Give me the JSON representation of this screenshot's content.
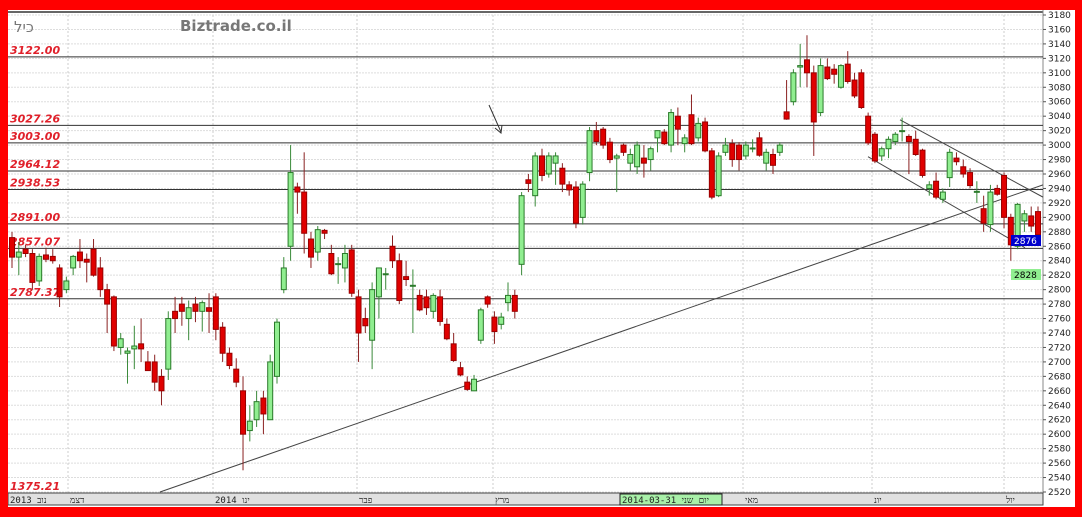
{
  "header": {
    "symbol": "כיל",
    "watermark": "Biztrade.co.il"
  },
  "levels": [
    {
      "label": "3122.00",
      "price": 3122.0
    },
    {
      "label": "3027.26",
      "price": 3027.26
    },
    {
      "label": "3003.00",
      "price": 3003.0
    },
    {
      "label": "2964.12",
      "price": 2964.12
    },
    {
      "label": "2938.53",
      "price": 2938.53
    },
    {
      "label": "2891.00",
      "price": 2891.0
    },
    {
      "label": "2857.07",
      "price": 2857.07
    },
    {
      "label": "2787.37",
      "price": 2787.37
    }
  ],
  "offscale_level": {
    "label": "1375.21"
  },
  "x_axis": {
    "labels": [
      "2013 נוב",
      "דצמ",
      "2014 ינו",
      "פבר",
      "מרץ",
      "מאי",
      "יונ",
      "יול"
    ],
    "cursor_label": "יום שני 2014-03-31"
  },
  "price_tags": {
    "last": "2876",
    "other": "2828"
  },
  "colors": {
    "up": "#90ee90",
    "down": "#e00000",
    "border": "#ff0000",
    "level_text": "#e0202a",
    "last_tag": "#0000cc",
    "other_tag": "#90ee90"
  },
  "chart_data": {
    "type": "candlestick",
    "ylim": [
      2520,
      3180
    ],
    "yticks": [
      3180,
      3160,
      3140,
      3120,
      3100,
      3080,
      3060,
      3040,
      3020,
      3000,
      2980,
      2960,
      2940,
      2920,
      2900,
      2880,
      2860,
      2840,
      2820,
      2800,
      2780,
      2760,
      2740,
      2720,
      2700,
      2680,
      2660,
      2640,
      2620,
      2600,
      2580,
      2560,
      2540,
      2520
    ],
    "grid": true,
    "ohlc": [
      [
        2872,
        2880,
        2830,
        2845
      ],
      [
        2845,
        2866,
        2820,
        2852
      ],
      [
        2856,
        2862,
        2845,
        2850
      ],
      [
        2850,
        2856,
        2800,
        2810
      ],
      [
        2812,
        2850,
        2805,
        2846
      ],
      [
        2848,
        2858,
        2838,
        2842
      ],
      [
        2846,
        2856,
        2836,
        2840
      ],
      [
        2830,
        2835,
        2776,
        2790
      ],
      [
        2800,
        2818,
        2795,
        2812
      ],
      [
        2830,
        2848,
        2820,
        2846
      ],
      [
        2852,
        2870,
        2830,
        2840
      ],
      [
        2842,
        2850,
        2810,
        2838
      ],
      [
        2856,
        2870,
        2818,
        2820
      ],
      [
        2830,
        2845,
        2790,
        2800
      ],
      [
        2800,
        2808,
        2740,
        2780
      ],
      [
        2790,
        2792,
        2715,
        2722
      ],
      [
        2720,
        2740,
        2710,
        2732
      ],
      [
        2712,
        2720,
        2670,
        2715
      ],
      [
        2718,
        2750,
        2690,
        2722
      ],
      [
        2725,
        2760,
        2700,
        2718
      ],
      [
        2700,
        2715,
        2690,
        2688
      ],
      [
        2700,
        2710,
        2660,
        2672
      ],
      [
        2680,
        2690,
        2640,
        2660
      ],
      [
        2690,
        2770,
        2675,
        2760
      ],
      [
        2770,
        2790,
        2740,
        2760
      ],
      [
        2780,
        2790,
        2750,
        2770
      ],
      [
        2760,
        2785,
        2730,
        2775
      ],
      [
        2780,
        2790,
        2755,
        2770
      ],
      [
        2770,
        2785,
        2742,
        2782
      ],
      [
        2775,
        2795,
        2740,
        2770
      ],
      [
        2790,
        2795,
        2730,
        2745
      ],
      [
        2748,
        2755,
        2700,
        2712
      ],
      [
        2712,
        2720,
        2690,
        2695
      ],
      [
        2690,
        2705,
        2665,
        2672
      ],
      [
        2660,
        2680,
        2550,
        2600
      ],
      [
        2605,
        2640,
        2590,
        2618
      ],
      [
        2620,
        2660,
        2610,
        2645
      ],
      [
        2650,
        2660,
        2600,
        2628
      ],
      [
        2620,
        2710,
        2620,
        2700
      ],
      [
        2680,
        2760,
        2670,
        2755
      ],
      [
        2800,
        2845,
        2795,
        2830
      ],
      [
        2860,
        3000,
        2840,
        2962
      ],
      [
        2942,
        2948,
        2905,
        2935
      ],
      [
        2935,
        2990,
        2850,
        2878
      ],
      [
        2870,
        2880,
        2830,
        2845
      ],
      [
        2852,
        2888,
        2840,
        2883
      ],
      [
        2882,
        2884,
        2870,
        2878
      ],
      [
        2850,
        2862,
        2820,
        2822
      ],
      [
        2836,
        2845,
        2808,
        2836
      ],
      [
        2830,
        2862,
        2810,
        2850
      ],
      [
        2855,
        2862,
        2790,
        2795
      ],
      [
        2790,
        2800,
        2700,
        2740
      ],
      [
        2760,
        2775,
        2740,
        2750
      ],
      [
        2730,
        2810,
        2690,
        2800
      ],
      [
        2790,
        2830,
        2760,
        2830
      ],
      [
        2822,
        2830,
        2800,
        2822
      ],
      [
        2860,
        2875,
        2830,
        2840
      ],
      [
        2840,
        2850,
        2780,
        2785
      ],
      [
        2818,
        2840,
        2805,
        2814
      ],
      [
        2806,
        2828,
        2740,
        2806
      ],
      [
        2792,
        2800,
        2770,
        2772
      ],
      [
        2790,
        2800,
        2765,
        2775
      ],
      [
        2770,
        2795,
        2760,
        2792
      ],
      [
        2790,
        2800,
        2750,
        2756
      ],
      [
        2752,
        2760,
        2730,
        2732
      ],
      [
        2725,
        2740,
        2700,
        2702
      ],
      [
        2692,
        2700,
        2680,
        2682
      ],
      [
        2672,
        2680,
        2660,
        2662
      ],
      [
        2660,
        2682,
        2660,
        2676
      ],
      [
        2730,
        2775,
        2725,
        2772
      ],
      [
        2790,
        2792,
        2775,
        2780
      ],
      [
        2762,
        2770,
        2725,
        2742
      ],
      [
        2752,
        2768,
        2745,
        2762
      ],
      [
        2782,
        2810,
        2770,
        2792
      ],
      [
        2792,
        2800,
        2760,
        2770
      ],
      [
        2835,
        2935,
        2820,
        2930
      ],
      [
        2952,
        2960,
        2935,
        2947
      ],
      [
        2930,
        2990,
        2915,
        2985
      ],
      [
        2985,
        2995,
        2950,
        2958
      ],
      [
        2960,
        2990,
        2955,
        2985
      ],
      [
        2975,
        2990,
        2945,
        2985
      ],
      [
        2968,
        2975,
        2935,
        2946
      ],
      [
        2945,
        2950,
        2930,
        2938
      ],
      [
        2942,
        2950,
        2885,
        2892
      ],
      [
        2900,
        2950,
        2890,
        2946
      ],
      [
        2962,
        3025,
        2950,
        3020
      ],
      [
        3020,
        3032,
        3000,
        3005
      ],
      [
        3022,
        3025,
        2995,
        3000
      ],
      [
        3004,
        3010,
        2975,
        2980
      ],
      [
        2982,
        2988,
        2935,
        2985
      ],
      [
        3000,
        3002,
        2985,
        2990
      ],
      [
        2975,
        2995,
        2965,
        2987
      ],
      [
        2970,
        3005,
        2960,
        3000
      ],
      [
        2982,
        3000,
        2955,
        2975
      ],
      [
        2980,
        2998,
        2965,
        2995
      ],
      [
        3010,
        3020,
        2990,
        3020
      ],
      [
        3018,
        3022,
        3000,
        3002
      ],
      [
        3000,
        3050,
        2990,
        3045
      ],
      [
        3040,
        3052,
        3000,
        3022
      ],
      [
        3002,
        3015,
        2990,
        3010
      ],
      [
        3042,
        3070,
        3000,
        3002
      ],
      [
        3010,
        3038,
        3005,
        3030
      ],
      [
        3032,
        3038,
        2990,
        2992
      ],
      [
        2992,
        2996,
        2925,
        2928
      ],
      [
        2930,
        2990,
        2928,
        2985
      ],
      [
        2990,
        3010,
        2985,
        3000
      ],
      [
        3002,
        3008,
        2970,
        2980
      ],
      [
        3000,
        3004,
        2965,
        2980
      ],
      [
        2985,
        3005,
        2980,
        3000
      ],
      [
        2996,
        3008,
        2990,
        2996
      ],
      [
        3010,
        3018,
        2984,
        2986
      ],
      [
        2975,
        2995,
        2965,
        2990
      ],
      [
        2987,
        2995,
        2960,
        2972
      ],
      [
        2990,
        3004,
        2985,
        3000
      ],
      [
        3046,
        3090,
        3035,
        3036
      ],
      [
        3060,
        3105,
        3055,
        3100
      ],
      [
        3108,
        3140,
        3080,
        3110
      ],
      [
        3118,
        3152,
        3080,
        3100
      ],
      [
        3100,
        3110,
        2985,
        3032
      ],
      [
        3045,
        3120,
        3040,
        3110
      ],
      [
        3108,
        3120,
        3090,
        3092
      ],
      [
        3105,
        3112,
        3085,
        3098
      ],
      [
        3080,
        3112,
        3078,
        3110
      ],
      [
        3112,
        3130,
        3085,
        3088
      ],
      [
        3090,
        3100,
        3065,
        3068
      ],
      [
        3100,
        3105,
        3050,
        3052
      ],
      [
        3040,
        3045,
        3000,
        3003
      ],
      [
        3015,
        3018,
        2975,
        2978
      ],
      [
        2985,
        2998,
        2978,
        2995
      ],
      [
        2995,
        3012,
        2982,
        3008
      ],
      [
        3005,
        3018,
        3000,
        3015
      ],
      [
        3020,
        3038,
        3005,
        3020
      ],
      [
        3012,
        3015,
        2960,
        3005
      ],
      [
        3008,
        3020,
        2985,
        2987
      ],
      [
        2993,
        2995,
        2955,
        2958
      ],
      [
        2940,
        2950,
        2930,
        2945
      ],
      [
        2950,
        2962,
        2925,
        2928
      ],
      [
        2925,
        2940,
        2920,
        2935
      ],
      [
        2955,
        2995,
        2942,
        2990
      ],
      [
        2982,
        2990,
        2972,
        2977
      ],
      [
        2970,
        2980,
        2955,
        2960
      ],
      [
        2962,
        2968,
        2940,
        2944
      ],
      [
        2936,
        2950,
        2920,
        2936
      ],
      [
        2912,
        2930,
        2880,
        2892
      ],
      [
        2890,
        2945,
        2880,
        2935
      ],
      [
        2940,
        2945,
        2930,
        2932
      ],
      [
        2958,
        2962,
        2885,
        2900
      ],
      [
        2900,
        2905,
        2840,
        2862
      ],
      [
        2860,
        2920,
        2856,
        2918
      ],
      [
        2895,
        2910,
        2880,
        2905
      ],
      [
        2902,
        2915,
        2880,
        2888
      ],
      [
        2908,
        2915,
        2870,
        2876
      ]
    ]
  }
}
